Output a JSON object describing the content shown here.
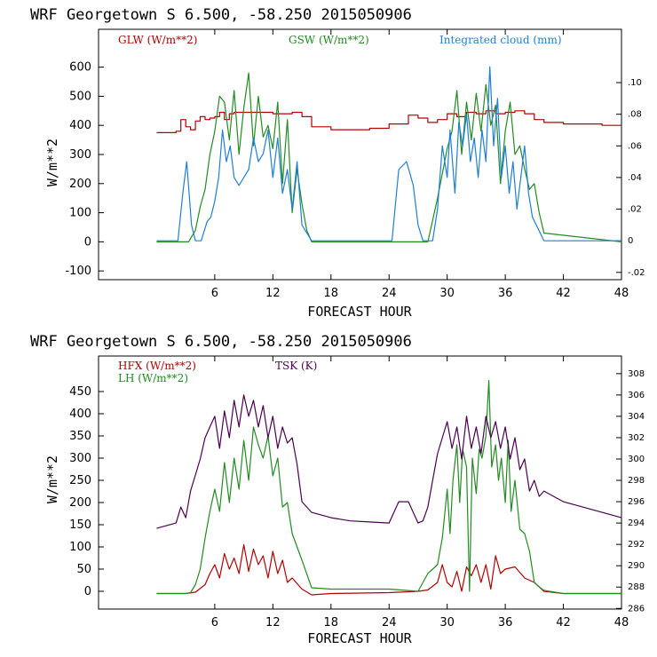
{
  "chart_data": [
    {
      "type": "line",
      "title": "WRF   Georgetown S   6.500, -58.250  2015050906",
      "xlabel": "FORECAST HOUR",
      "ylabel": "W/m**2",
      "xlim": [
        -6,
        48
      ],
      "ylim": [
        -130,
        730
      ],
      "xticks": [
        6,
        12,
        18,
        24,
        30,
        36,
        42,
        48
      ],
      "yticks": [
        -100,
        0,
        100,
        200,
        300,
        400,
        500,
        600
      ],
      "y2lim": [
        -0.0246,
        0.1337
      ],
      "y2ticks": [
        -0.02,
        0,
        0.02,
        0.04,
        0.06,
        0.08,
        0.1
      ],
      "y2ticklabels": [
        "-.02",
        "0",
        ".02",
        ".04",
        ".06",
        ".08",
        ".10"
      ],
      "series": [
        {
          "name": "GLW (W/m**2)",
          "color": "#b30000",
          "axis": "left",
          "step": true,
          "x": [
            0,
            2,
            2.5,
            3,
            3.5,
            4,
            4.5,
            5,
            5.5,
            6,
            6.5,
            7,
            7.5,
            8,
            9,
            10,
            11,
            12,
            13,
            14,
            15,
            16,
            18,
            20,
            22,
            24,
            26,
            27,
            28,
            29,
            30,
            31,
            32,
            33,
            34,
            35,
            36,
            37,
            38,
            39,
            40,
            42,
            44,
            46,
            48
          ],
          "y": [
            375,
            380,
            420,
            395,
            385,
            415,
            430,
            420,
            425,
            430,
            445,
            420,
            440,
            445,
            445,
            445,
            445,
            440,
            440,
            445,
            430,
            395,
            385,
            385,
            390,
            405,
            435,
            425,
            410,
            420,
            440,
            430,
            445,
            440,
            450,
            440,
            445,
            450,
            440,
            420,
            410,
            405,
            405,
            400,
            400
          ]
        },
        {
          "name": "GSW (W/m**2)",
          "color": "#228b22",
          "axis": "left",
          "step": false,
          "x": [
            0,
            3.3,
            4,
            4.5,
            5,
            5.5,
            6,
            6.5,
            7,
            7.5,
            8,
            8.5,
            9,
            9.5,
            10,
            10.5,
            11,
            11.5,
            12,
            12.5,
            13,
            13.5,
            14,
            14.5,
            15,
            15.5,
            16,
            28,
            29,
            30,
            30.5,
            31,
            31.5,
            32,
            32.5,
            33,
            33.5,
            34,
            34.5,
            35,
            35.5,
            36,
            36.5,
            37,
            37.5,
            38,
            38.5,
            39,
            39.5,
            40,
            48
          ],
          "y": [
            0,
            0,
            40,
            120,
            180,
            300,
            380,
            500,
            480,
            350,
            520,
            300,
            460,
            580,
            330,
            500,
            360,
            400,
            320,
            480,
            200,
            420,
            100,
            250,
            130,
            40,
            0,
            0,
            150,
            320,
            380,
            520,
            300,
            480,
            350,
            510,
            380,
            540,
            400,
            470,
            200,
            380,
            480,
            300,
            330,
            250,
            180,
            200,
            100,
            30,
            0
          ]
        },
        {
          "name": "Integrated cloud (mm)",
          "color": "#1f7fd6",
          "axis": "right",
          "step": false,
          "x": [
            0,
            2.2,
            2.7,
            3.1,
            3.6,
            4,
            4.6,
            5.2,
            5.6,
            6,
            6.4,
            6.8,
            7.2,
            7.6,
            8,
            8.5,
            9,
            9.5,
            10,
            10.5,
            11,
            11.5,
            12,
            12.5,
            13,
            13.5,
            14,
            14.5,
            15,
            15.5,
            16,
            24.3,
            25,
            25.8,
            26.5,
            27,
            27.5,
            28.5,
            29,
            29.5,
            30,
            30.3,
            30.8,
            31.2,
            31.6,
            32,
            32.4,
            32.8,
            33.2,
            33.6,
            34,
            34.4,
            34.8,
            35.2,
            35.6,
            36,
            36.4,
            36.8,
            37.2,
            37.6,
            38,
            38.4,
            38.8,
            39.2,
            39.6,
            40,
            48
          ],
          "y": [
            0,
            0,
            0.03,
            0.05,
            0.01,
            0,
            0,
            0.012,
            0.015,
            0.025,
            0.04,
            0.07,
            0.05,
            0.06,
            0.04,
            0.035,
            0.04,
            0.045,
            0.065,
            0.05,
            0.055,
            0.07,
            0.04,
            0.065,
            0.03,
            0.045,
            0.02,
            0.05,
            0.01,
            0.005,
            0,
            0,
            0.045,
            0.05,
            0.035,
            0.01,
            0,
            0,
            0.02,
            0.06,
            0.04,
            0.07,
            0.03,
            0.075,
            0.06,
            0.08,
            0.05,
            0.065,
            0.04,
            0.07,
            0.05,
            0.11,
            0.06,
            0.09,
            0.04,
            0.06,
            0.03,
            0.05,
            0.02,
            0.04,
            0.06,
            0.03,
            0.015,
            0.01,
            0.005,
            0,
            0
          ]
        }
      ]
    },
    {
      "type": "line",
      "title": "WRF   Georgetown S   6.500, -58.250  2015050906",
      "xlabel": "FORECAST HOUR",
      "ylabel": "W/m**2",
      "xlim": [
        -6,
        48
      ],
      "ylim": [
        -40,
        530
      ],
      "xticks": [
        6,
        12,
        18,
        24,
        30,
        36,
        42,
        48
      ],
      "yticks": [
        0,
        50,
        100,
        150,
        200,
        250,
        300,
        350,
        400,
        450
      ],
      "y2lim": [
        285.94,
        309.65
      ],
      "y2ticks": [
        286,
        288,
        290,
        292,
        294,
        296,
        298,
        300,
        302,
        304,
        306,
        308
      ],
      "y2ticklabels": [
        "286",
        "288",
        "290",
        "292",
        "294",
        "296",
        "298",
        "300",
        "302",
        "304",
        "306",
        "308"
      ],
      "series": [
        {
          "name": "HFX (W/m**2)",
          "color": "#b30000",
          "axis": "left",
          "step": false,
          "x": [
            0,
            3,
            4,
            5,
            5.5,
            6,
            6.5,
            7,
            7.5,
            8,
            8.5,
            9,
            9.5,
            10,
            10.5,
            11,
            11.5,
            12,
            12.5,
            13,
            13.5,
            14,
            15,
            16,
            18,
            24,
            27,
            28,
            29,
            29.5,
            30,
            30.5,
            31,
            31.5,
            32,
            32.5,
            33,
            33.5,
            34,
            34.5,
            35,
            35.5,
            36,
            37,
            38,
            39,
            40,
            42,
            48
          ],
          "y": [
            -5,
            -5,
            -2,
            15,
            40,
            60,
            30,
            85,
            50,
            75,
            40,
            105,
            45,
            95,
            60,
            80,
            30,
            90,
            40,
            70,
            20,
            30,
            5,
            -8,
            -5,
            -3,
            0,
            3,
            20,
            60,
            20,
            10,
            45,
            0,
            55,
            35,
            60,
            20,
            60,
            5,
            80,
            40,
            50,
            55,
            30,
            20,
            0,
            -5,
            -5
          ]
        },
        {
          "name": "LH (W/m**2)",
          "color": "#228b22",
          "axis": "left",
          "step": false,
          "x": [
            0,
            3,
            3.5,
            4,
            4.5,
            5,
            5.5,
            6,
            6.5,
            7,
            7.5,
            8,
            8.5,
            9,
            9.5,
            10,
            10.5,
            11,
            11.5,
            12,
            12.5,
            13,
            13.5,
            14,
            15,
            16,
            18,
            24,
            27,
            28,
            29,
            29.5,
            30,
            30.3,
            30.6,
            31,
            31.3,
            31.6,
            32,
            32.3,
            32.6,
            33,
            33.3,
            33.6,
            34,
            34.3,
            34.6,
            35,
            35.3,
            35.6,
            36,
            36.3,
            36.6,
            37,
            37.5,
            38,
            38.5,
            39,
            39.5,
            40,
            42,
            48
          ],
          "y": [
            -5,
            -5,
            -3,
            15,
            50,
            120,
            180,
            230,
            180,
            290,
            200,
            300,
            230,
            340,
            250,
            370,
            330,
            300,
            350,
            260,
            300,
            190,
            200,
            130,
            70,
            8,
            5,
            5,
            0,
            40,
            60,
            120,
            230,
            130,
            250,
            330,
            200,
            320,
            280,
            0,
            300,
            220,
            320,
            300,
            350,
            475,
            280,
            330,
            250,
            300,
            200,
            340,
            180,
            250,
            140,
            130,
            90,
            20,
            10,
            2,
            -5,
            -5
          ]
        },
        {
          "name": "TSK (K)",
          "color": "#4b0052",
          "axis": "right",
          "step": false,
          "x": [
            0,
            2,
            2.5,
            3,
            3.5,
            4,
            4.5,
            5,
            5.5,
            6,
            6.5,
            7,
            7.5,
            8,
            8.5,
            9,
            9.5,
            10,
            10.5,
            11,
            11.5,
            12,
            12.5,
            13,
            13.5,
            14,
            14.5,
            15,
            16,
            18,
            20,
            22,
            24,
            25,
            26,
            27,
            27.5,
            28,
            28.5,
            29,
            29.5,
            30,
            30.5,
            31,
            31.5,
            32,
            32.5,
            33,
            33.5,
            34,
            34.5,
            35,
            35.5,
            36,
            36.5,
            37,
            37.5,
            38,
            38.5,
            39,
            39.5,
            40,
            41,
            42,
            44,
            46,
            48
          ],
          "y": [
            293.5,
            294,
            295.5,
            294.5,
            297,
            298.5,
            300,
            302,
            303,
            304,
            301,
            304.5,
            302,
            305.5,
            303,
            306,
            304,
            305.5,
            303,
            305,
            302,
            304,
            301,
            303,
            301.5,
            302,
            299.5,
            296,
            295,
            294.5,
            294.2,
            294.1,
            294,
            296,
            296,
            294,
            294.2,
            295.5,
            298,
            300.5,
            302,
            303.5,
            301,
            303,
            300,
            304,
            301,
            303,
            300.5,
            304,
            302,
            303.5,
            301,
            303,
            300,
            302,
            299,
            300,
            297,
            298,
            296.5,
            297,
            296.5,
            296,
            295.5,
            295,
            294.5
          ]
        }
      ]
    }
  ],
  "legends": [
    [
      {
        "text": "GLW (W/m**2)",
        "color": "#b30000"
      },
      {
        "text": "GSW (W/m**2)",
        "color": "#228b22"
      },
      {
        "text": "Integrated cloud (mm)",
        "color": "#1f7fd6"
      }
    ],
    [
      {
        "text": "HFX (W/m**2)",
        "color": "#b30000"
      },
      {
        "text": "LH (W/m**2)",
        "color": "#228b22"
      },
      {
        "text": "TSK (K)",
        "color": "#4b0052"
      }
    ]
  ]
}
